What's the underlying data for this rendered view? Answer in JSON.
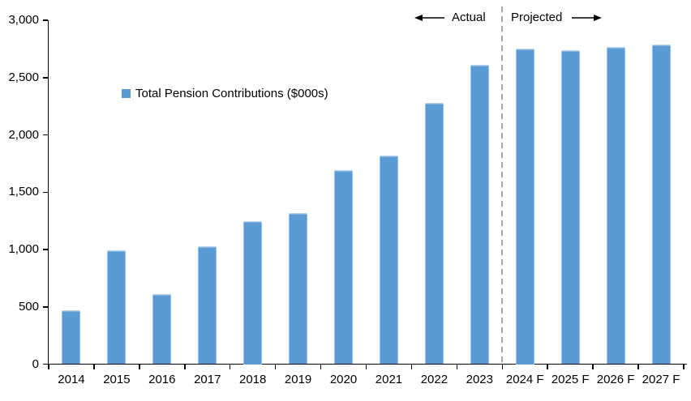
{
  "chart_data": {
    "type": "bar",
    "title": "",
    "legend": "Total Pension Contributions ($000s)",
    "legend_position": "inside-upper-left",
    "grid": false,
    "categories": [
      "2014",
      "2015",
      "2016",
      "2017",
      "2018",
      "2019",
      "2020",
      "2021",
      "2022",
      "2023",
      "2024 F",
      "2025 F",
      "2026 F",
      "2027 F"
    ],
    "values": [
      470,
      990,
      610,
      1030,
      1250,
      1320,
      1690,
      1820,
      2280,
      2610,
      2750,
      2740,
      2770,
      2790
    ],
    "xlabel": "",
    "ylabel": "",
    "ylim": [
      0,
      3000
    ],
    "yticks": [
      {
        "value": 0,
        "label": "0"
      },
      {
        "value": 500,
        "label": "500"
      },
      {
        "value": 1000,
        "label": "1,000"
      },
      {
        "value": 1500,
        "label": "1,500"
      },
      {
        "value": 2000,
        "label": "2,000"
      },
      {
        "value": 2500,
        "label": "2,500"
      },
      {
        "value": 3000,
        "label": "3,000"
      }
    ],
    "annotations": {
      "actual_label": "Actual",
      "projected_label": "Projected",
      "divider_after_category": "2023"
    },
    "colors": {
      "bar": "#5B9BD5",
      "axis": "#000000",
      "divider": "#A6A6A6",
      "text": "#000000"
    }
  }
}
